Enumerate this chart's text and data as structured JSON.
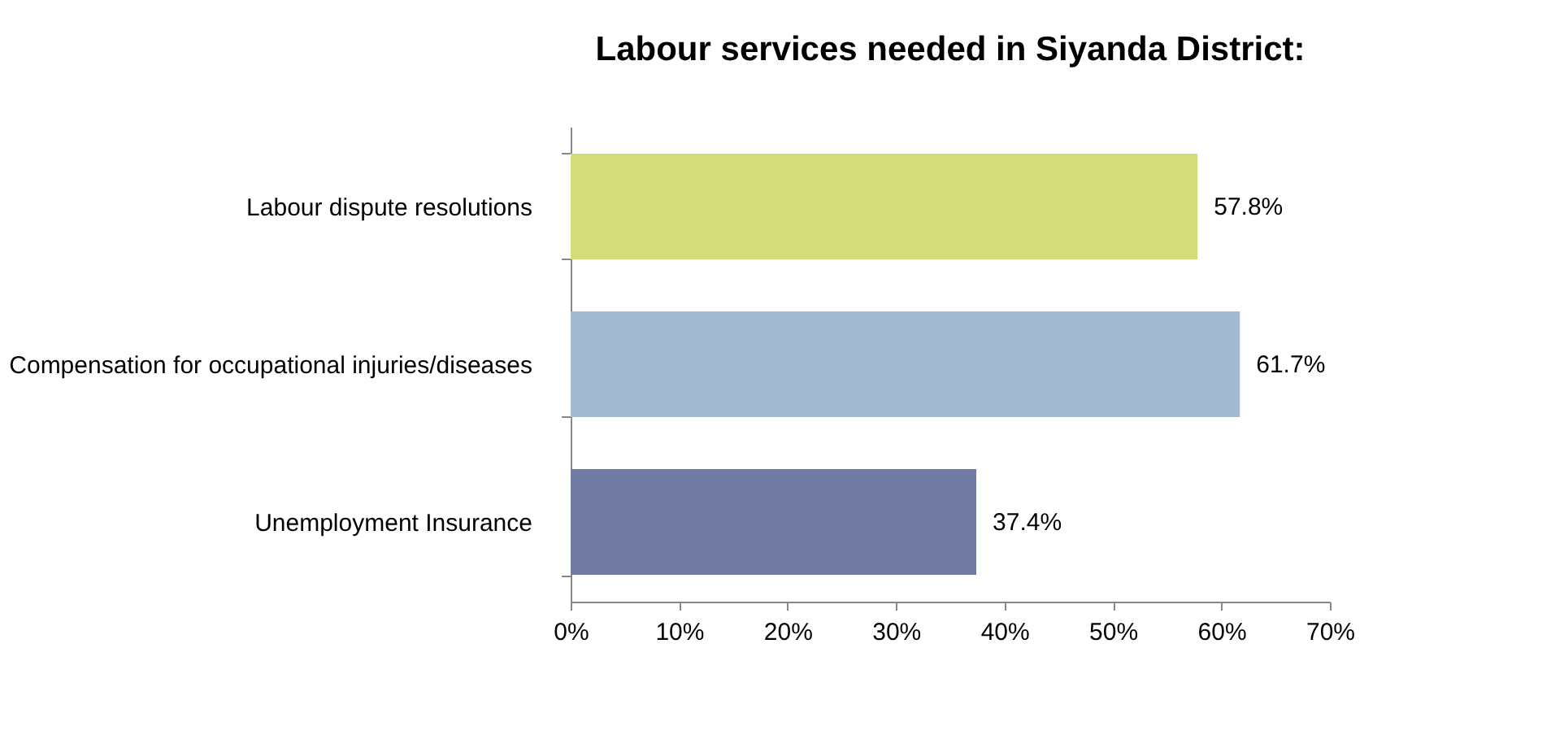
{
  "chart_data": {
    "type": "bar",
    "orientation": "horizontal",
    "title": "Labour services needed in Siyanda District:",
    "categories": [
      "Labour dispute resolutions",
      "Compensation for occupational injuries/diseases",
      "Unemployment Insurance"
    ],
    "values": [
      57.8,
      61.7,
      37.4
    ],
    "colors": [
      "#d4dc7c",
      "#a3b9d0",
      "#727ba3"
    ],
    "value_labels": [
      "57.8%",
      "61.7%",
      "37.4%"
    ],
    "xlim": [
      0,
      70
    ],
    "xticks": [
      {
        "value": 0,
        "label": "0%"
      },
      {
        "value": 10,
        "label": "10%"
      },
      {
        "value": 20,
        "label": "20%"
      },
      {
        "value": 30,
        "label": "30%"
      },
      {
        "value": 40,
        "label": "40%"
      },
      {
        "value": 50,
        "label": "50%"
      },
      {
        "value": 60,
        "label": "60%"
      },
      {
        "value": 70,
        "label": "70%"
      }
    ],
    "grid": false
  }
}
